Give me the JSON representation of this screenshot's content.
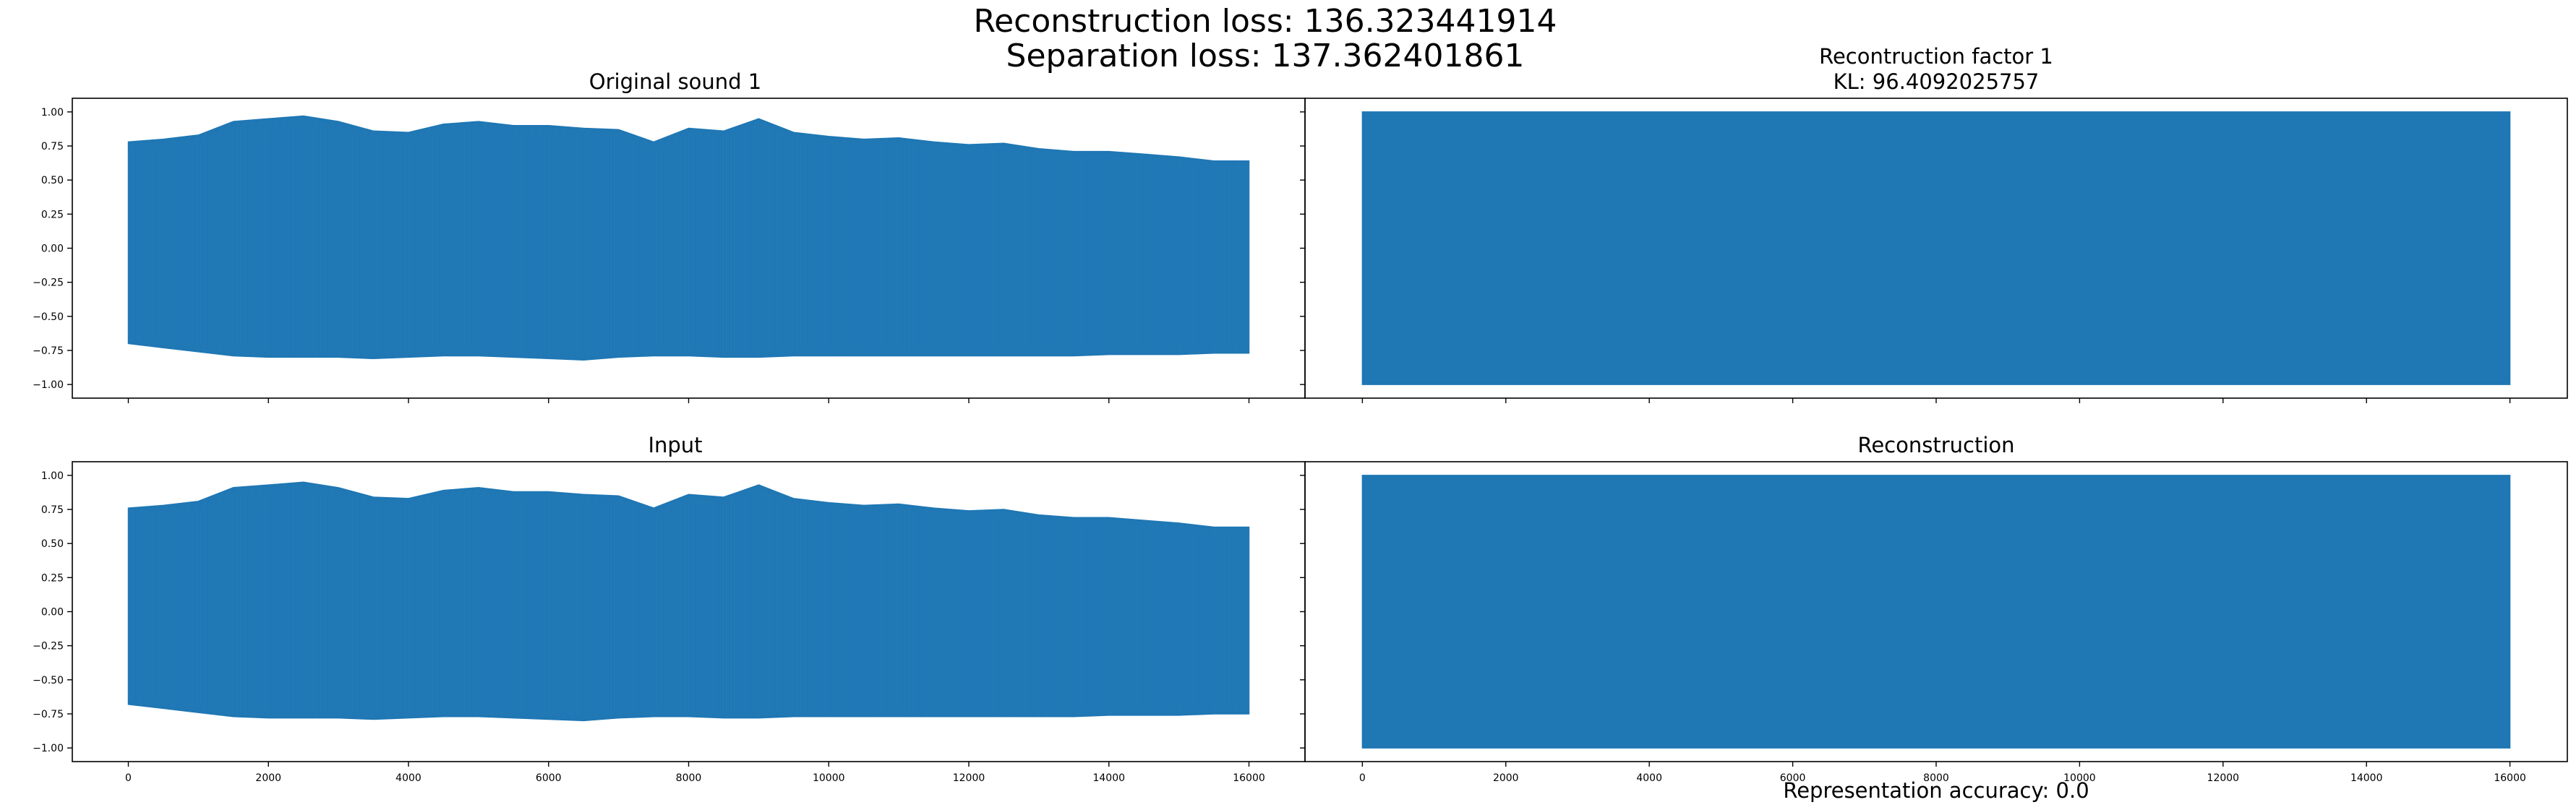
{
  "figure": {
    "suptitle_line1": "Reconstruction loss: 136.323441914",
    "suptitle_line2": "Separation loss: 137.362401861",
    "footer": "Representation accuracy: 0.0"
  },
  "colors": {
    "series": "#1f77b4",
    "axes": "#000000",
    "background": "#ffffff"
  },
  "chart_data": [
    {
      "type": "line",
      "panel": "top-left",
      "title": "Original sound 1",
      "subtitle": "",
      "xlim": [
        0,
        16000
      ],
      "ylim": [
        -1.0,
        1.0
      ],
      "yticks": [
        1.0,
        0.75,
        0.5,
        0.25,
        0.0,
        -0.25,
        -0.5,
        -0.75,
        -1.0
      ],
      "ytick_labels": [
        "1.00",
        "0.75",
        "0.50",
        "0.25",
        "0.00",
        "−0.25",
        "−0.50",
        "−0.75",
        "−1.00"
      ],
      "xticks": [
        0,
        2000,
        4000,
        6000,
        8000,
        10000,
        12000,
        14000,
        16000
      ],
      "xtick_labels": [],
      "envelope": {
        "x": [
          0,
          500,
          1000,
          1500,
          2000,
          2500,
          3000,
          3500,
          4000,
          4500,
          5000,
          5500,
          6000,
          6500,
          7000,
          7500,
          8000,
          8500,
          9000,
          9500,
          10000,
          10500,
          11000,
          11500,
          12000,
          12500,
          13000,
          13500,
          14000,
          14500,
          15000,
          15500,
          16000
        ],
        "upper": [
          0.78,
          0.8,
          0.83,
          0.93,
          0.95,
          0.97,
          0.93,
          0.86,
          0.85,
          0.91,
          0.93,
          0.9,
          0.9,
          0.88,
          0.87,
          0.78,
          0.88,
          0.86,
          0.95,
          0.85,
          0.82,
          0.8,
          0.81,
          0.78,
          0.76,
          0.77,
          0.73,
          0.71,
          0.71,
          0.69,
          0.67,
          0.64,
          0.64
        ],
        "lower": [
          -0.7,
          -0.73,
          -0.76,
          -0.79,
          -0.8,
          -0.8,
          -0.8,
          -0.81,
          -0.8,
          -0.79,
          -0.79,
          -0.8,
          -0.81,
          -0.82,
          -0.8,
          -0.79,
          -0.79,
          -0.8,
          -0.8,
          -0.79,
          -0.79,
          -0.79,
          -0.79,
          -0.79,
          -0.79,
          -0.79,
          -0.79,
          -0.79,
          -0.78,
          -0.78,
          -0.78,
          -0.77,
          -0.77
        ]
      }
    },
    {
      "type": "line",
      "panel": "top-right",
      "title": "Recontruction factor 1",
      "subtitle": "KL: 96.4092025757",
      "xlim": [
        0,
        16000
      ],
      "ylim": [
        -1.0,
        1.0
      ],
      "yticks": [
        1.0,
        0.75,
        0.5,
        0.25,
        0.0,
        -0.25,
        -0.5,
        -0.75,
        -1.0
      ],
      "ytick_labels": [],
      "xticks": [
        0,
        2000,
        4000,
        6000,
        8000,
        10000,
        12000,
        14000,
        16000
      ],
      "xtick_labels": [],
      "envelope": {
        "x": [
          0,
          16000
        ],
        "upper": [
          1.0,
          1.0
        ],
        "lower": [
          -1.0,
          -1.0
        ]
      }
    },
    {
      "type": "line",
      "panel": "bottom-left",
      "title": "Input",
      "subtitle": "",
      "xlim": [
        0,
        16000
      ],
      "ylim": [
        -1.0,
        1.0
      ],
      "yticks": [
        1.0,
        0.75,
        0.5,
        0.25,
        0.0,
        -0.25,
        -0.5,
        -0.75,
        -1.0
      ],
      "ytick_labels": [
        "1.00",
        "0.75",
        "0.50",
        "0.25",
        "0.00",
        "−0.25",
        "−0.50",
        "−0.75",
        "−1.00"
      ],
      "xticks": [
        0,
        2000,
        4000,
        6000,
        8000,
        10000,
        12000,
        14000,
        16000
      ],
      "xtick_labels": [
        "0",
        "2000",
        "4000",
        "6000",
        "8000",
        "10000",
        "12000",
        "14000",
        "16000"
      ],
      "envelope": {
        "x": [
          0,
          500,
          1000,
          1500,
          2000,
          2500,
          3000,
          3500,
          4000,
          4500,
          5000,
          5500,
          6000,
          6500,
          7000,
          7500,
          8000,
          8500,
          9000,
          9500,
          10000,
          10500,
          11000,
          11500,
          12000,
          12500,
          13000,
          13500,
          14000,
          14500,
          15000,
          15500,
          16000
        ],
        "upper": [
          0.76,
          0.78,
          0.81,
          0.91,
          0.93,
          0.95,
          0.91,
          0.84,
          0.83,
          0.89,
          0.91,
          0.88,
          0.88,
          0.86,
          0.85,
          0.76,
          0.86,
          0.84,
          0.93,
          0.83,
          0.8,
          0.78,
          0.79,
          0.76,
          0.74,
          0.75,
          0.71,
          0.69,
          0.69,
          0.67,
          0.65,
          0.62,
          0.62
        ],
        "lower": [
          -0.68,
          -0.71,
          -0.74,
          -0.77,
          -0.78,
          -0.78,
          -0.78,
          -0.79,
          -0.78,
          -0.77,
          -0.77,
          -0.78,
          -0.79,
          -0.8,
          -0.78,
          -0.77,
          -0.77,
          -0.78,
          -0.78,
          -0.77,
          -0.77,
          -0.77,
          -0.77,
          -0.77,
          -0.77,
          -0.77,
          -0.77,
          -0.77,
          -0.76,
          -0.76,
          -0.76,
          -0.75,
          -0.75
        ]
      }
    },
    {
      "type": "line",
      "panel": "bottom-right",
      "title": "Reconstruction",
      "subtitle": "",
      "xlim": [
        0,
        16000
      ],
      "ylim": [
        -1.0,
        1.0
      ],
      "yticks": [
        1.0,
        0.75,
        0.5,
        0.25,
        0.0,
        -0.25,
        -0.5,
        -0.75,
        -1.0
      ],
      "ytick_labels": [],
      "xticks": [
        0,
        2000,
        4000,
        6000,
        8000,
        10000,
        12000,
        14000,
        16000
      ],
      "xtick_labels": [
        "0",
        "2000",
        "4000",
        "6000",
        "8000",
        "10000",
        "12000",
        "14000",
        "16000"
      ],
      "envelope": {
        "x": [
          0,
          16000
        ],
        "upper": [
          1.0,
          1.0
        ],
        "lower": [
          -1.0,
          -1.0
        ]
      }
    }
  ]
}
